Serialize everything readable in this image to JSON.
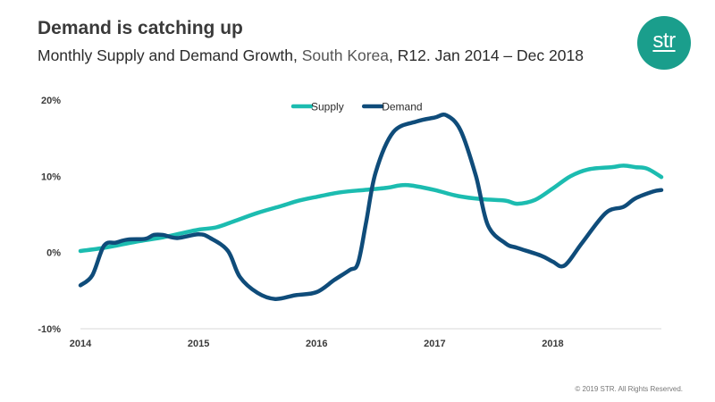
{
  "header": {
    "title": "Demand is catching up",
    "subtitle_main": "Monthly Supply and Demand Growth, ",
    "subtitle_region": "South Korea",
    "subtitle_tail": ", R12. Jan 2014 – Dec 2018"
  },
  "logo": {
    "text": "str",
    "color": "#1a9e8c"
  },
  "footer": {
    "copyright": "© 2019 STR. All Rights Reserved."
  },
  "chart_data": {
    "type": "line",
    "title": "Demand is catching up",
    "xlabel": "",
    "ylabel": "",
    "x_range": [
      2014.0,
      2018.92
    ],
    "ylim": [
      -10,
      20
    ],
    "y_ticks": [
      {
        "value": 20,
        "label": "20%"
      },
      {
        "value": 10,
        "label": "10%"
      },
      {
        "value": 0,
        "label": "0%"
      },
      {
        "value": -10,
        "label": "-10%"
      }
    ],
    "x_ticks": [
      {
        "value": 2014,
        "label": "2014"
      },
      {
        "value": 2015,
        "label": "2015"
      },
      {
        "value": 2016,
        "label": "2016"
      },
      {
        "value": 2017,
        "label": "2017"
      },
      {
        "value": 2018,
        "label": "2018"
      }
    ],
    "legend": {
      "position": "top-center"
    },
    "series": [
      {
        "name": "Supply",
        "color": "#1cbcb0",
        "points": [
          [
            2014.0,
            0.2
          ],
          [
            2014.15,
            0.5
          ],
          [
            2014.3,
            0.9
          ],
          [
            2014.5,
            1.5
          ],
          [
            2014.7,
            2.0
          ],
          [
            2014.85,
            2.5
          ],
          [
            2015.0,
            3.0
          ],
          [
            2015.15,
            3.3
          ],
          [
            2015.3,
            4.1
          ],
          [
            2015.5,
            5.2
          ],
          [
            2015.7,
            6.1
          ],
          [
            2015.85,
            6.8
          ],
          [
            2016.0,
            7.3
          ],
          [
            2016.2,
            7.9
          ],
          [
            2016.4,
            8.2
          ],
          [
            2016.6,
            8.5
          ],
          [
            2016.7,
            8.8
          ],
          [
            2016.8,
            8.8
          ],
          [
            2017.0,
            8.2
          ],
          [
            2017.2,
            7.4
          ],
          [
            2017.4,
            7.0
          ],
          [
            2017.6,
            6.8
          ],
          [
            2017.7,
            6.4
          ],
          [
            2017.85,
            6.9
          ],
          [
            2018.0,
            8.4
          ],
          [
            2018.15,
            10.0
          ],
          [
            2018.3,
            10.9
          ],
          [
            2018.5,
            11.2
          ],
          [
            2018.6,
            11.4
          ],
          [
            2018.7,
            11.2
          ],
          [
            2018.8,
            11.0
          ],
          [
            2018.92,
            9.9
          ]
        ]
      },
      {
        "name": "Demand",
        "color": "#0f4c7a",
        "points": [
          [
            2014.0,
            -4.3
          ],
          [
            2014.1,
            -3.0
          ],
          [
            2014.2,
            0.9
          ],
          [
            2014.3,
            1.3
          ],
          [
            2014.4,
            1.7
          ],
          [
            2014.55,
            1.8
          ],
          [
            2014.62,
            2.3
          ],
          [
            2014.7,
            2.3
          ],
          [
            2014.82,
            1.9
          ],
          [
            2015.0,
            2.4
          ],
          [
            2015.1,
            1.9
          ],
          [
            2015.25,
            0.2
          ],
          [
            2015.35,
            -3.2
          ],
          [
            2015.5,
            -5.3
          ],
          [
            2015.65,
            -6.1
          ],
          [
            2015.82,
            -5.6
          ],
          [
            2016.0,
            -5.2
          ],
          [
            2016.15,
            -3.6
          ],
          [
            2016.28,
            -2.3
          ],
          [
            2016.35,
            -1.4
          ],
          [
            2016.42,
            4.0
          ],
          [
            2016.5,
            10.5
          ],
          [
            2016.65,
            15.8
          ],
          [
            2016.85,
            17.2
          ],
          [
            2017.0,
            17.7
          ],
          [
            2017.1,
            18.0
          ],
          [
            2017.22,
            16.0
          ],
          [
            2017.35,
            10.0
          ],
          [
            2017.45,
            3.6
          ],
          [
            2017.6,
            1.2
          ],
          [
            2017.7,
            0.6
          ],
          [
            2017.9,
            -0.4
          ],
          [
            2018.0,
            -1.2
          ],
          [
            2018.1,
            -1.7
          ],
          [
            2018.25,
            1.3
          ],
          [
            2018.45,
            5.2
          ],
          [
            2018.6,
            6.0
          ],
          [
            2018.7,
            7.1
          ],
          [
            2018.85,
            8.0
          ],
          [
            2018.92,
            8.2
          ]
        ]
      }
    ]
  }
}
